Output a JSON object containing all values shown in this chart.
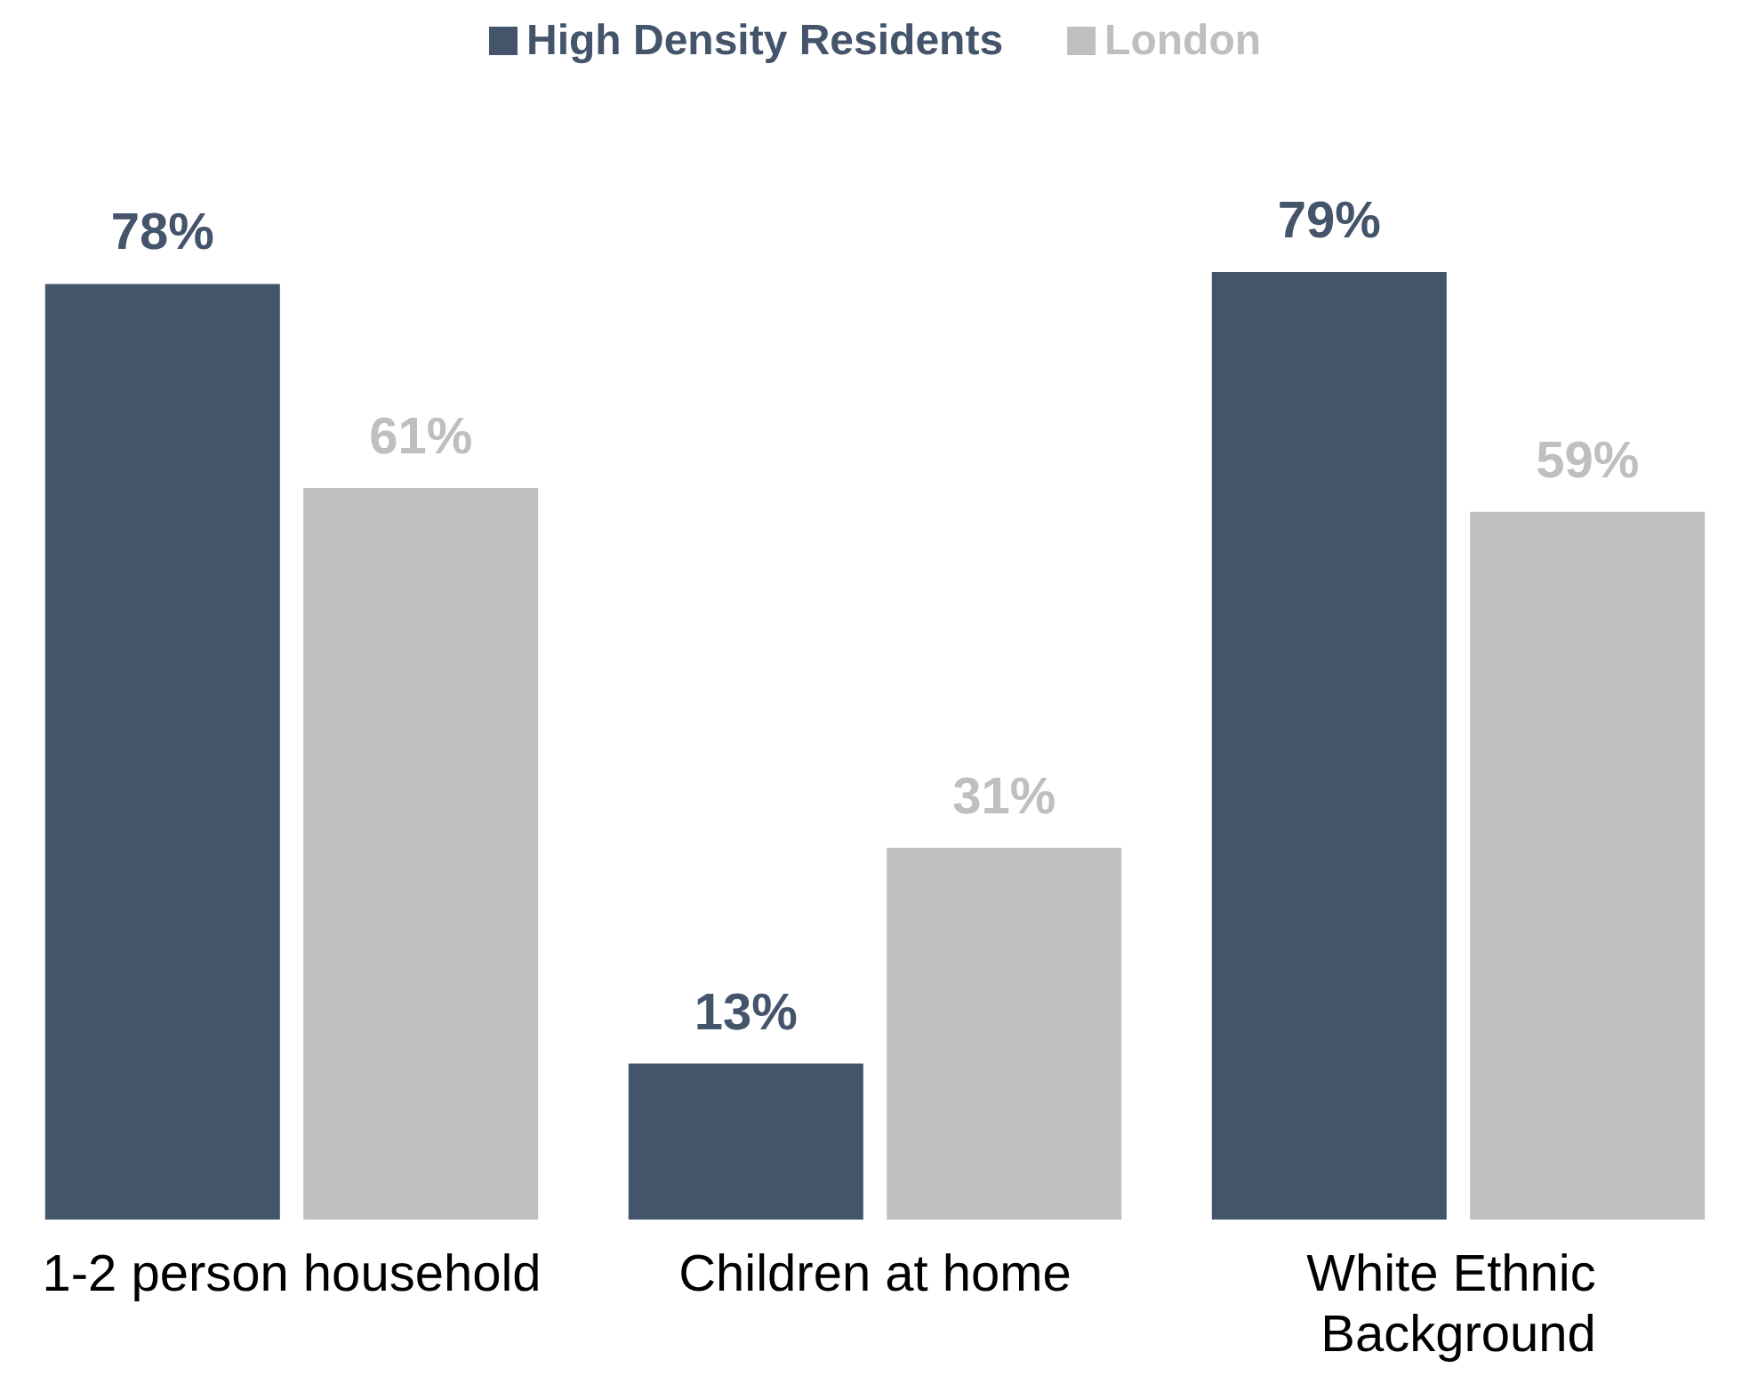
{
  "chart_data": {
    "type": "bar",
    "categories": [
      "1-2 person household",
      "Children at home",
      "White Ethnic Background"
    ],
    "series": [
      {
        "name": "High Density Residents",
        "color": "#44546a",
        "values": [
          78,
          13,
          79
        ],
        "value_labels": [
          "78%",
          "13%",
          "79%"
        ]
      },
      {
        "name": "London",
        "color": "#bfbfbf",
        "values": [
          61,
          31,
          59
        ],
        "value_labels": [
          "61%",
          "31%",
          "59%"
        ]
      }
    ],
    "legend": "top"
  }
}
